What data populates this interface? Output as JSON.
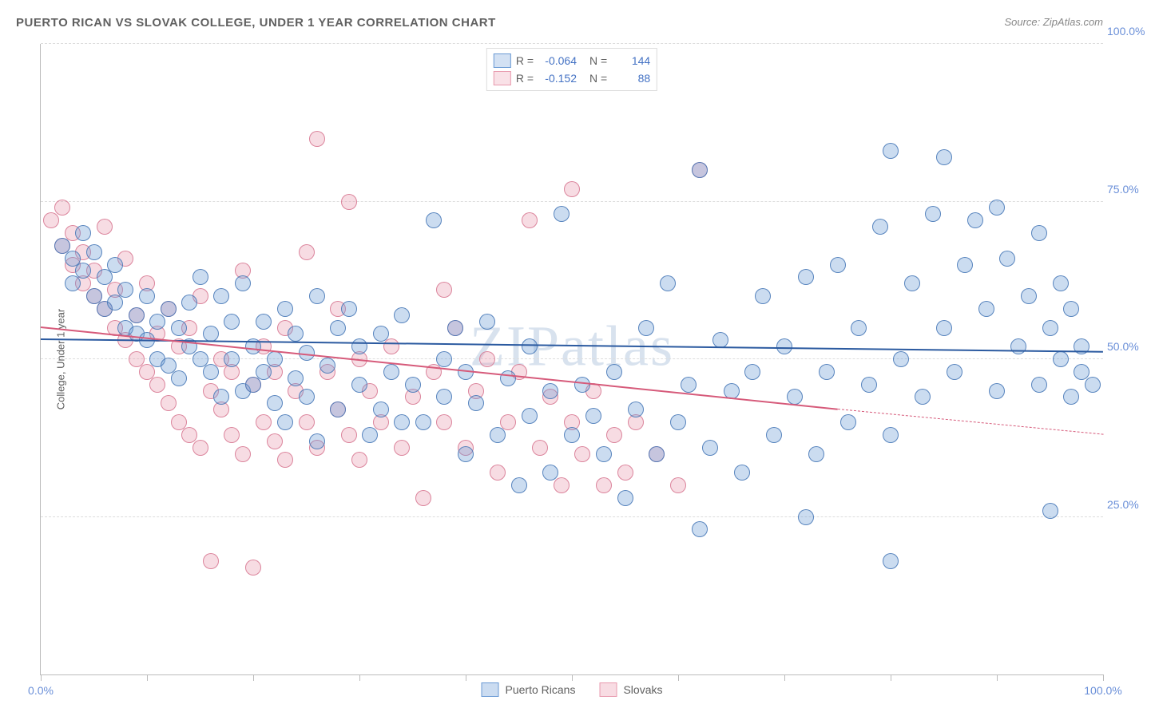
{
  "title": "PUERTO RICAN VS SLOVAK COLLEGE, UNDER 1 YEAR CORRELATION CHART",
  "source": "Source: ZipAtlas.com",
  "watermark": "ZIPatlas",
  "y_axis_title": "College, Under 1 year",
  "chart": {
    "type": "scatter",
    "background_color": "#ffffff",
    "grid_color": "#dddddd",
    "axis_color": "#bbbbbb",
    "tick_label_color": "#6a8fd8",
    "xlim": [
      0,
      100
    ],
    "ylim": [
      0,
      100
    ],
    "x_ticks": [
      0,
      10,
      20,
      30,
      40,
      50,
      60,
      70,
      80,
      90,
      100
    ],
    "x_tick_labels": {
      "0": "0.0%",
      "100": "100.0%"
    },
    "y_gridlines": [
      25,
      50,
      75,
      100
    ],
    "y_tick_labels": {
      "25": "25.0%",
      "50": "50.0%",
      "75": "75.0%",
      "100": "100.0%"
    },
    "marker_radius": 9,
    "marker_fill_opacity": 0.35,
    "marker_stroke_opacity": 0.9,
    "series": [
      {
        "name": "Puerto Ricans",
        "color": "#6a9ad4",
        "stroke": "#4a7ab8",
        "R": "-0.064",
        "N": "144",
        "trend": {
          "x1": 0,
          "y1": 53,
          "x2": 100,
          "y2": 51,
          "color": "#2b5aa0",
          "width": 2
        },
        "points": [
          [
            2,
            68
          ],
          [
            3,
            66
          ],
          [
            3,
            62
          ],
          [
            4,
            70
          ],
          [
            4,
            64
          ],
          [
            5,
            67
          ],
          [
            5,
            60
          ],
          [
            6,
            63
          ],
          [
            6,
            58
          ],
          [
            7,
            65
          ],
          [
            7,
            59
          ],
          [
            8,
            61
          ],
          [
            8,
            55
          ],
          [
            9,
            57
          ],
          [
            9,
            54
          ],
          [
            10,
            60
          ],
          [
            10,
            53
          ],
          [
            11,
            56
          ],
          [
            11,
            50
          ],
          [
            12,
            58
          ],
          [
            12,
            49
          ],
          [
            13,
            55
          ],
          [
            13,
            47
          ],
          [
            14,
            52
          ],
          [
            14,
            59
          ],
          [
            15,
            63
          ],
          [
            15,
            50
          ],
          [
            16,
            48
          ],
          [
            16,
            54
          ],
          [
            17,
            60
          ],
          [
            17,
            44
          ],
          [
            18,
            56
          ],
          [
            18,
            50
          ],
          [
            19,
            62
          ],
          [
            19,
            45
          ],
          [
            20,
            52
          ],
          [
            20,
            46
          ],
          [
            21,
            48
          ],
          [
            21,
            56
          ],
          [
            22,
            50
          ],
          [
            22,
            43
          ],
          [
            23,
            58
          ],
          [
            23,
            40
          ],
          [
            24,
            54
          ],
          [
            24,
            47
          ],
          [
            25,
            44
          ],
          [
            25,
            51
          ],
          [
            26,
            60
          ],
          [
            26,
            37
          ],
          [
            27,
            49
          ],
          [
            28,
            55
          ],
          [
            28,
            42
          ],
          [
            29,
            58
          ],
          [
            30,
            46
          ],
          [
            30,
            52
          ],
          [
            31,
            38
          ],
          [
            32,
            54
          ],
          [
            32,
            42
          ],
          [
            33,
            48
          ],
          [
            34,
            40
          ],
          [
            34,
            57
          ],
          [
            35,
            46
          ],
          [
            36,
            40
          ],
          [
            37,
            72
          ],
          [
            38,
            44
          ],
          [
            38,
            50
          ],
          [
            39,
            55
          ],
          [
            40,
            35
          ],
          [
            40,
            48
          ],
          [
            41,
            43
          ],
          [
            42,
            56
          ],
          [
            43,
            38
          ],
          [
            44,
            47
          ],
          [
            45,
            30
          ],
          [
            46,
            52
          ],
          [
            46,
            41
          ],
          [
            48,
            45
          ],
          [
            48,
            32
          ],
          [
            49,
            73
          ],
          [
            50,
            38
          ],
          [
            51,
            46
          ],
          [
            52,
            41
          ],
          [
            53,
            35
          ],
          [
            54,
            48
          ],
          [
            55,
            28
          ],
          [
            56,
            42
          ],
          [
            57,
            55
          ],
          [
            58,
            35
          ],
          [
            59,
            62
          ],
          [
            60,
            40
          ],
          [
            61,
            46
          ],
          [
            62,
            23
          ],
          [
            62,
            80
          ],
          [
            63,
            36
          ],
          [
            64,
            53
          ],
          [
            65,
            45
          ],
          [
            66,
            32
          ],
          [
            67,
            48
          ],
          [
            68,
            60
          ],
          [
            69,
            38
          ],
          [
            70,
            52
          ],
          [
            71,
            44
          ],
          [
            72,
            63
          ],
          [
            72,
            25
          ],
          [
            73,
            35
          ],
          [
            74,
            48
          ],
          [
            75,
            65
          ],
          [
            76,
            40
          ],
          [
            77,
            55
          ],
          [
            78,
            46
          ],
          [
            79,
            71
          ],
          [
            80,
            38
          ],
          [
            80,
            83
          ],
          [
            81,
            50
          ],
          [
            82,
            62
          ],
          [
            83,
            44
          ],
          [
            84,
            73
          ],
          [
            85,
            55
          ],
          [
            85,
            82
          ],
          [
            86,
            48
          ],
          [
            87,
            65
          ],
          [
            88,
            72
          ],
          [
            89,
            58
          ],
          [
            90,
            45
          ],
          [
            90,
            74
          ],
          [
            91,
            66
          ],
          [
            92,
            52
          ],
          [
            93,
            60
          ],
          [
            94,
            46
          ],
          [
            94,
            70
          ],
          [
            95,
            55
          ],
          [
            95,
            26
          ],
          [
            96,
            62
          ],
          [
            96,
            50
          ],
          [
            97,
            44
          ],
          [
            97,
            58
          ],
          [
            98,
            52
          ],
          [
            98,
            48
          ],
          [
            99,
            46
          ],
          [
            80,
            18
          ]
        ]
      },
      {
        "name": "Slovaks",
        "color": "#e89aae",
        "stroke": "#d87a94",
        "R": "-0.152",
        "N": "88",
        "trend": {
          "x1": 0,
          "y1": 55,
          "x2": 75,
          "y2": 42,
          "color": "#d65a7a",
          "width": 2,
          "extend_dashed_to": 100,
          "extend_y": 38
        },
        "points": [
          [
            1,
            72
          ],
          [
            2,
            68
          ],
          [
            2,
            74
          ],
          [
            3,
            65
          ],
          [
            3,
            70
          ],
          [
            4,
            62
          ],
          [
            4,
            67
          ],
          [
            5,
            60
          ],
          [
            5,
            64
          ],
          [
            6,
            58
          ],
          [
            6,
            71
          ],
          [
            7,
            55
          ],
          [
            7,
            61
          ],
          [
            8,
            53
          ],
          [
            8,
            66
          ],
          [
            9,
            50
          ],
          [
            9,
            57
          ],
          [
            10,
            48
          ],
          [
            10,
            62
          ],
          [
            11,
            46
          ],
          [
            11,
            54
          ],
          [
            12,
            43
          ],
          [
            12,
            58
          ],
          [
            13,
            40
          ],
          [
            13,
            52
          ],
          [
            14,
            38
          ],
          [
            14,
            55
          ],
          [
            15,
            36
          ],
          [
            15,
            60
          ],
          [
            16,
            18
          ],
          [
            16,
            45
          ],
          [
            17,
            42
          ],
          [
            17,
            50
          ],
          [
            18,
            38
          ],
          [
            18,
            48
          ],
          [
            19,
            35
          ],
          [
            19,
            64
          ],
          [
            20,
            17
          ],
          [
            20,
            46
          ],
          [
            21,
            40
          ],
          [
            21,
            52
          ],
          [
            22,
            37
          ],
          [
            22,
            48
          ],
          [
            23,
            34
          ],
          [
            23,
            55
          ],
          [
            24,
            45
          ],
          [
            25,
            67
          ],
          [
            25,
            40
          ],
          [
            26,
            85
          ],
          [
            26,
            36
          ],
          [
            27,
            48
          ],
          [
            28,
            42
          ],
          [
            28,
            58
          ],
          [
            29,
            38
          ],
          [
            29,
            75
          ],
          [
            30,
            34
          ],
          [
            30,
            50
          ],
          [
            31,
            45
          ],
          [
            32,
            40
          ],
          [
            33,
            52
          ],
          [
            34,
            36
          ],
          [
            35,
            44
          ],
          [
            36,
            28
          ],
          [
            37,
            48
          ],
          [
            38,
            61
          ],
          [
            38,
            40
          ],
          [
            39,
            55
          ],
          [
            40,
            36
          ],
          [
            41,
            45
          ],
          [
            42,
            50
          ],
          [
            43,
            32
          ],
          [
            44,
            40
          ],
          [
            45,
            48
          ],
          [
            46,
            72
          ],
          [
            47,
            36
          ],
          [
            48,
            44
          ],
          [
            49,
            30
          ],
          [
            50,
            77
          ],
          [
            50,
            40
          ],
          [
            51,
            35
          ],
          [
            52,
            45
          ],
          [
            53,
            30
          ],
          [
            54,
            38
          ],
          [
            55,
            32
          ],
          [
            56,
            40
          ],
          [
            58,
            35
          ],
          [
            60,
            30
          ],
          [
            62,
            80
          ]
        ]
      }
    ]
  },
  "legend": [
    {
      "label": "Puerto Ricans",
      "fill": "#a8c4e8",
      "stroke": "#6a9ad4"
    },
    {
      "label": "Slovaks",
      "fill": "#f4c4d0",
      "stroke": "#e89aae"
    }
  ]
}
